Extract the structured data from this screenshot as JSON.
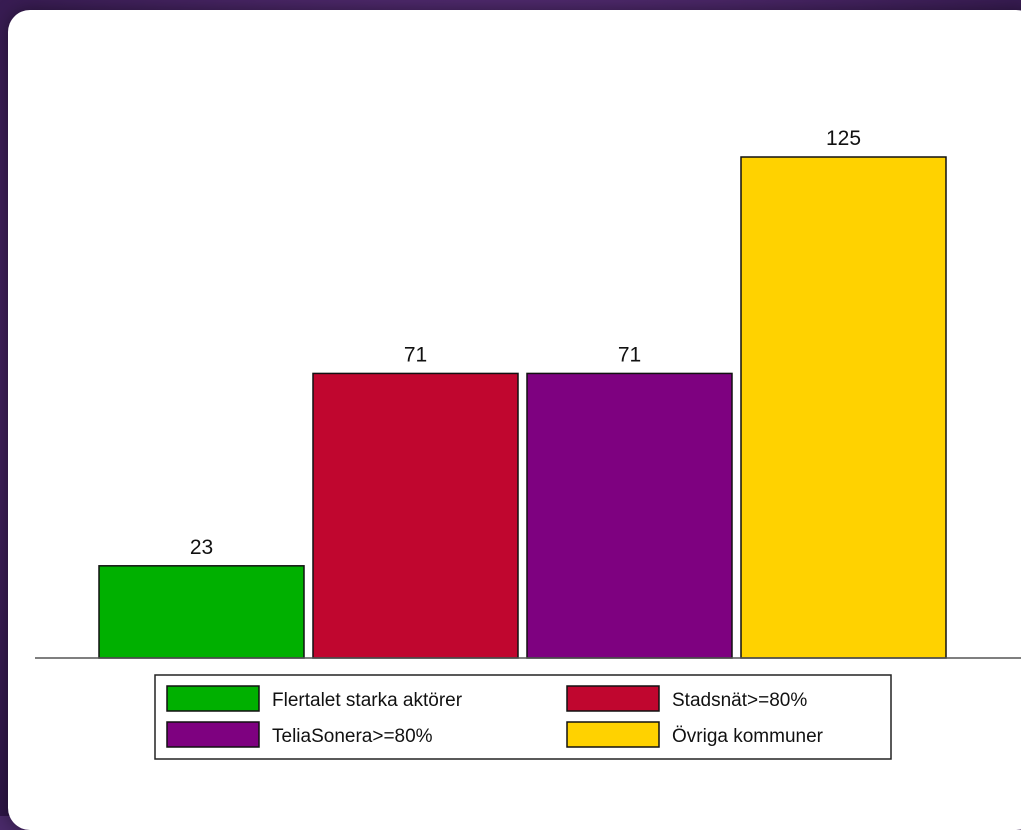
{
  "chart_data": {
    "type": "bar",
    "categories": [
      "Flertalet starka aktörer",
      "Stadsnät>=80%",
      "TeliaSonera>=80%",
      "Övriga kommuner"
    ],
    "values": [
      23,
      71,
      71,
      125
    ],
    "data_labels": [
      "23",
      "71",
      "71",
      "125"
    ],
    "colors": [
      "#00b000",
      "#c0062f",
      "#7e0180",
      "#ffd200"
    ],
    "ylim": [
      0,
      125
    ],
    "grid": false,
    "legend_position": "bottom-center",
    "legend": {
      "entries": [
        {
          "label": "Flertalet starka aktörer",
          "color": "#00b000"
        },
        {
          "label": "Stadsnät>=80%",
          "color": "#c0062f"
        },
        {
          "label": "TeliaSonera>=80%",
          "color": "#7e0180"
        },
        {
          "label": "Övriga kommuner",
          "color": "#ffd200"
        }
      ]
    }
  }
}
